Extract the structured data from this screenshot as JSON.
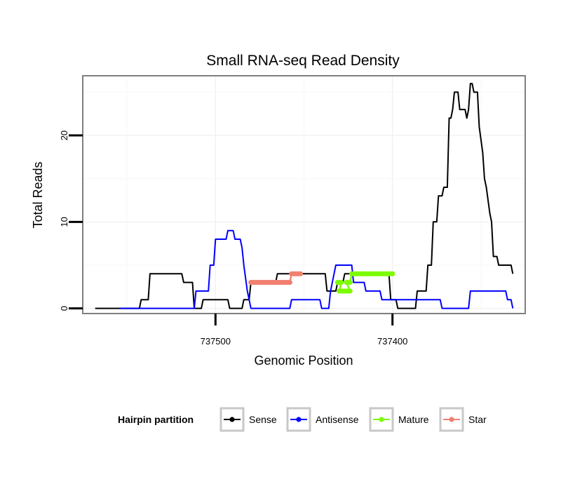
{
  "chart_data": {
    "type": "line",
    "title": "Small RNA-seq Read Density",
    "xlabel": "Genomic Position",
    "ylabel": "Total Reads",
    "x_reversed": true,
    "xlim": [
      737575,
      737325
    ],
    "ylim": [
      -0.6,
      26.9
    ],
    "x_ticks": [
      737500,
      737400
    ],
    "x_tick_labels": [
      "737500",
      "737400"
    ],
    "y_ticks": [
      0,
      10,
      20
    ],
    "y_tick_labels": [
      "0",
      "10",
      "20"
    ],
    "grid": true,
    "legend": {
      "title": "Hairpin partition",
      "position": "bottom",
      "entries": [
        "Sense",
        "Antisense",
        "Mature",
        "Star"
      ]
    },
    "series": [
      {
        "name": "Sense",
        "color": "#000000",
        "points": [
          [
            737568,
            0
          ],
          [
            737543,
            0
          ],
          [
            737542,
            1
          ],
          [
            737538,
            1
          ],
          [
            737537,
            4
          ],
          [
            737519,
            4
          ],
          [
            737518,
            3
          ],
          [
            737513,
            3
          ],
          [
            737512,
            0
          ],
          [
            737508,
            0
          ],
          [
            737507,
            1
          ],
          [
            737493,
            1
          ],
          [
            737492,
            0
          ],
          [
            737485,
            0
          ],
          [
            737484,
            1
          ],
          [
            737481,
            1
          ],
          [
            737480,
            3
          ],
          [
            737466,
            3
          ],
          [
            737465,
            4
          ],
          [
            737454,
            4
          ],
          [
            737453,
            4
          ],
          [
            737438,
            4
          ],
          [
            737437,
            2
          ],
          [
            737432,
            2
          ],
          [
            737431,
            3
          ],
          [
            737428,
            3
          ],
          [
            737427,
            4
          ],
          [
            737402,
            4
          ],
          [
            737401,
            1
          ],
          [
            737398,
            1
          ],
          [
            737397,
            0
          ],
          [
            737387,
            0
          ],
          [
            737386,
            2
          ],
          [
            737381,
            2
          ],
          [
            737380,
            5
          ],
          [
            737378,
            5
          ],
          [
            737377,
            10
          ],
          [
            737375,
            10
          ],
          [
            737374,
            13
          ],
          [
            737372,
            13
          ],
          [
            737371,
            14
          ],
          [
            737369,
            14
          ],
          [
            737368,
            22
          ],
          [
            737367,
            22
          ],
          [
            737366,
            23
          ],
          [
            737365,
            25
          ],
          [
            737363,
            25
          ],
          [
            737362,
            23
          ],
          [
            737359,
            23
          ],
          [
            737358,
            22
          ],
          [
            737357,
            23
          ],
          [
            737356,
            26
          ],
          [
            737355,
            26
          ],
          [
            737354,
            25
          ],
          [
            737352,
            25
          ],
          [
            737351,
            21
          ],
          [
            737349,
            18
          ],
          [
            737348,
            15
          ],
          [
            737347,
            14
          ],
          [
            737345,
            11
          ],
          [
            737344,
            10
          ],
          [
            737343,
            6
          ],
          [
            737341,
            6
          ],
          [
            737340,
            5
          ],
          [
            737333,
            5
          ],
          [
            737332,
            4
          ]
        ]
      },
      {
        "name": "Antisense",
        "color": "#0000ff",
        "points": [
          [
            737554,
            0
          ],
          [
            737512,
            0
          ],
          [
            737511,
            2
          ],
          [
            737504,
            2
          ],
          [
            737503,
            5
          ],
          [
            737501,
            5
          ],
          [
            737500,
            8
          ],
          [
            737494,
            8
          ],
          [
            737493,
            9
          ],
          [
            737490,
            9
          ],
          [
            737489,
            8
          ],
          [
            737486,
            8
          ],
          [
            737485,
            7
          ],
          [
            737484,
            5
          ],
          [
            737482,
            2
          ],
          [
            737481,
            1
          ],
          [
            737480,
            0
          ],
          [
            737458,
            0
          ],
          [
            737457,
            1
          ],
          [
            737441,
            1
          ],
          [
            737440,
            0
          ],
          [
            737436,
            0
          ],
          [
            737435,
            2
          ],
          [
            737434,
            3
          ],
          [
            737433,
            4
          ],
          [
            737432,
            5
          ],
          [
            737423,
            5
          ],
          [
            737422,
            3
          ],
          [
            737416,
            3
          ],
          [
            737415,
            2
          ],
          [
            737407,
            2
          ],
          [
            737406,
            1
          ],
          [
            737381,
            1
          ],
          [
            737380,
            1
          ],
          [
            737373,
            1
          ],
          [
            737372,
            0
          ],
          [
            737357,
            0
          ],
          [
            737356,
            2
          ],
          [
            737336,
            2
          ],
          [
            737335,
            1
          ],
          [
            737333,
            1
          ],
          [
            737332,
            0
          ]
        ]
      },
      {
        "name": "Mature",
        "color": "#7cfc00",
        "marker": true,
        "points": [
          [
            737431,
            3
          ],
          [
            737429,
            3
          ],
          [
            737430,
            2
          ],
          [
            737424,
            2
          ],
          [
            737426,
            3
          ],
          [
            737424,
            3
          ],
          [
            737423,
            4
          ],
          [
            737400,
            4
          ]
        ]
      },
      {
        "name": "Star",
        "color": "#f08070",
        "marker": true,
        "points": [
          [
            737480,
            3
          ],
          [
            737458,
            3
          ],
          [
            737457,
            4
          ],
          [
            737452,
            4
          ]
        ]
      }
    ]
  }
}
